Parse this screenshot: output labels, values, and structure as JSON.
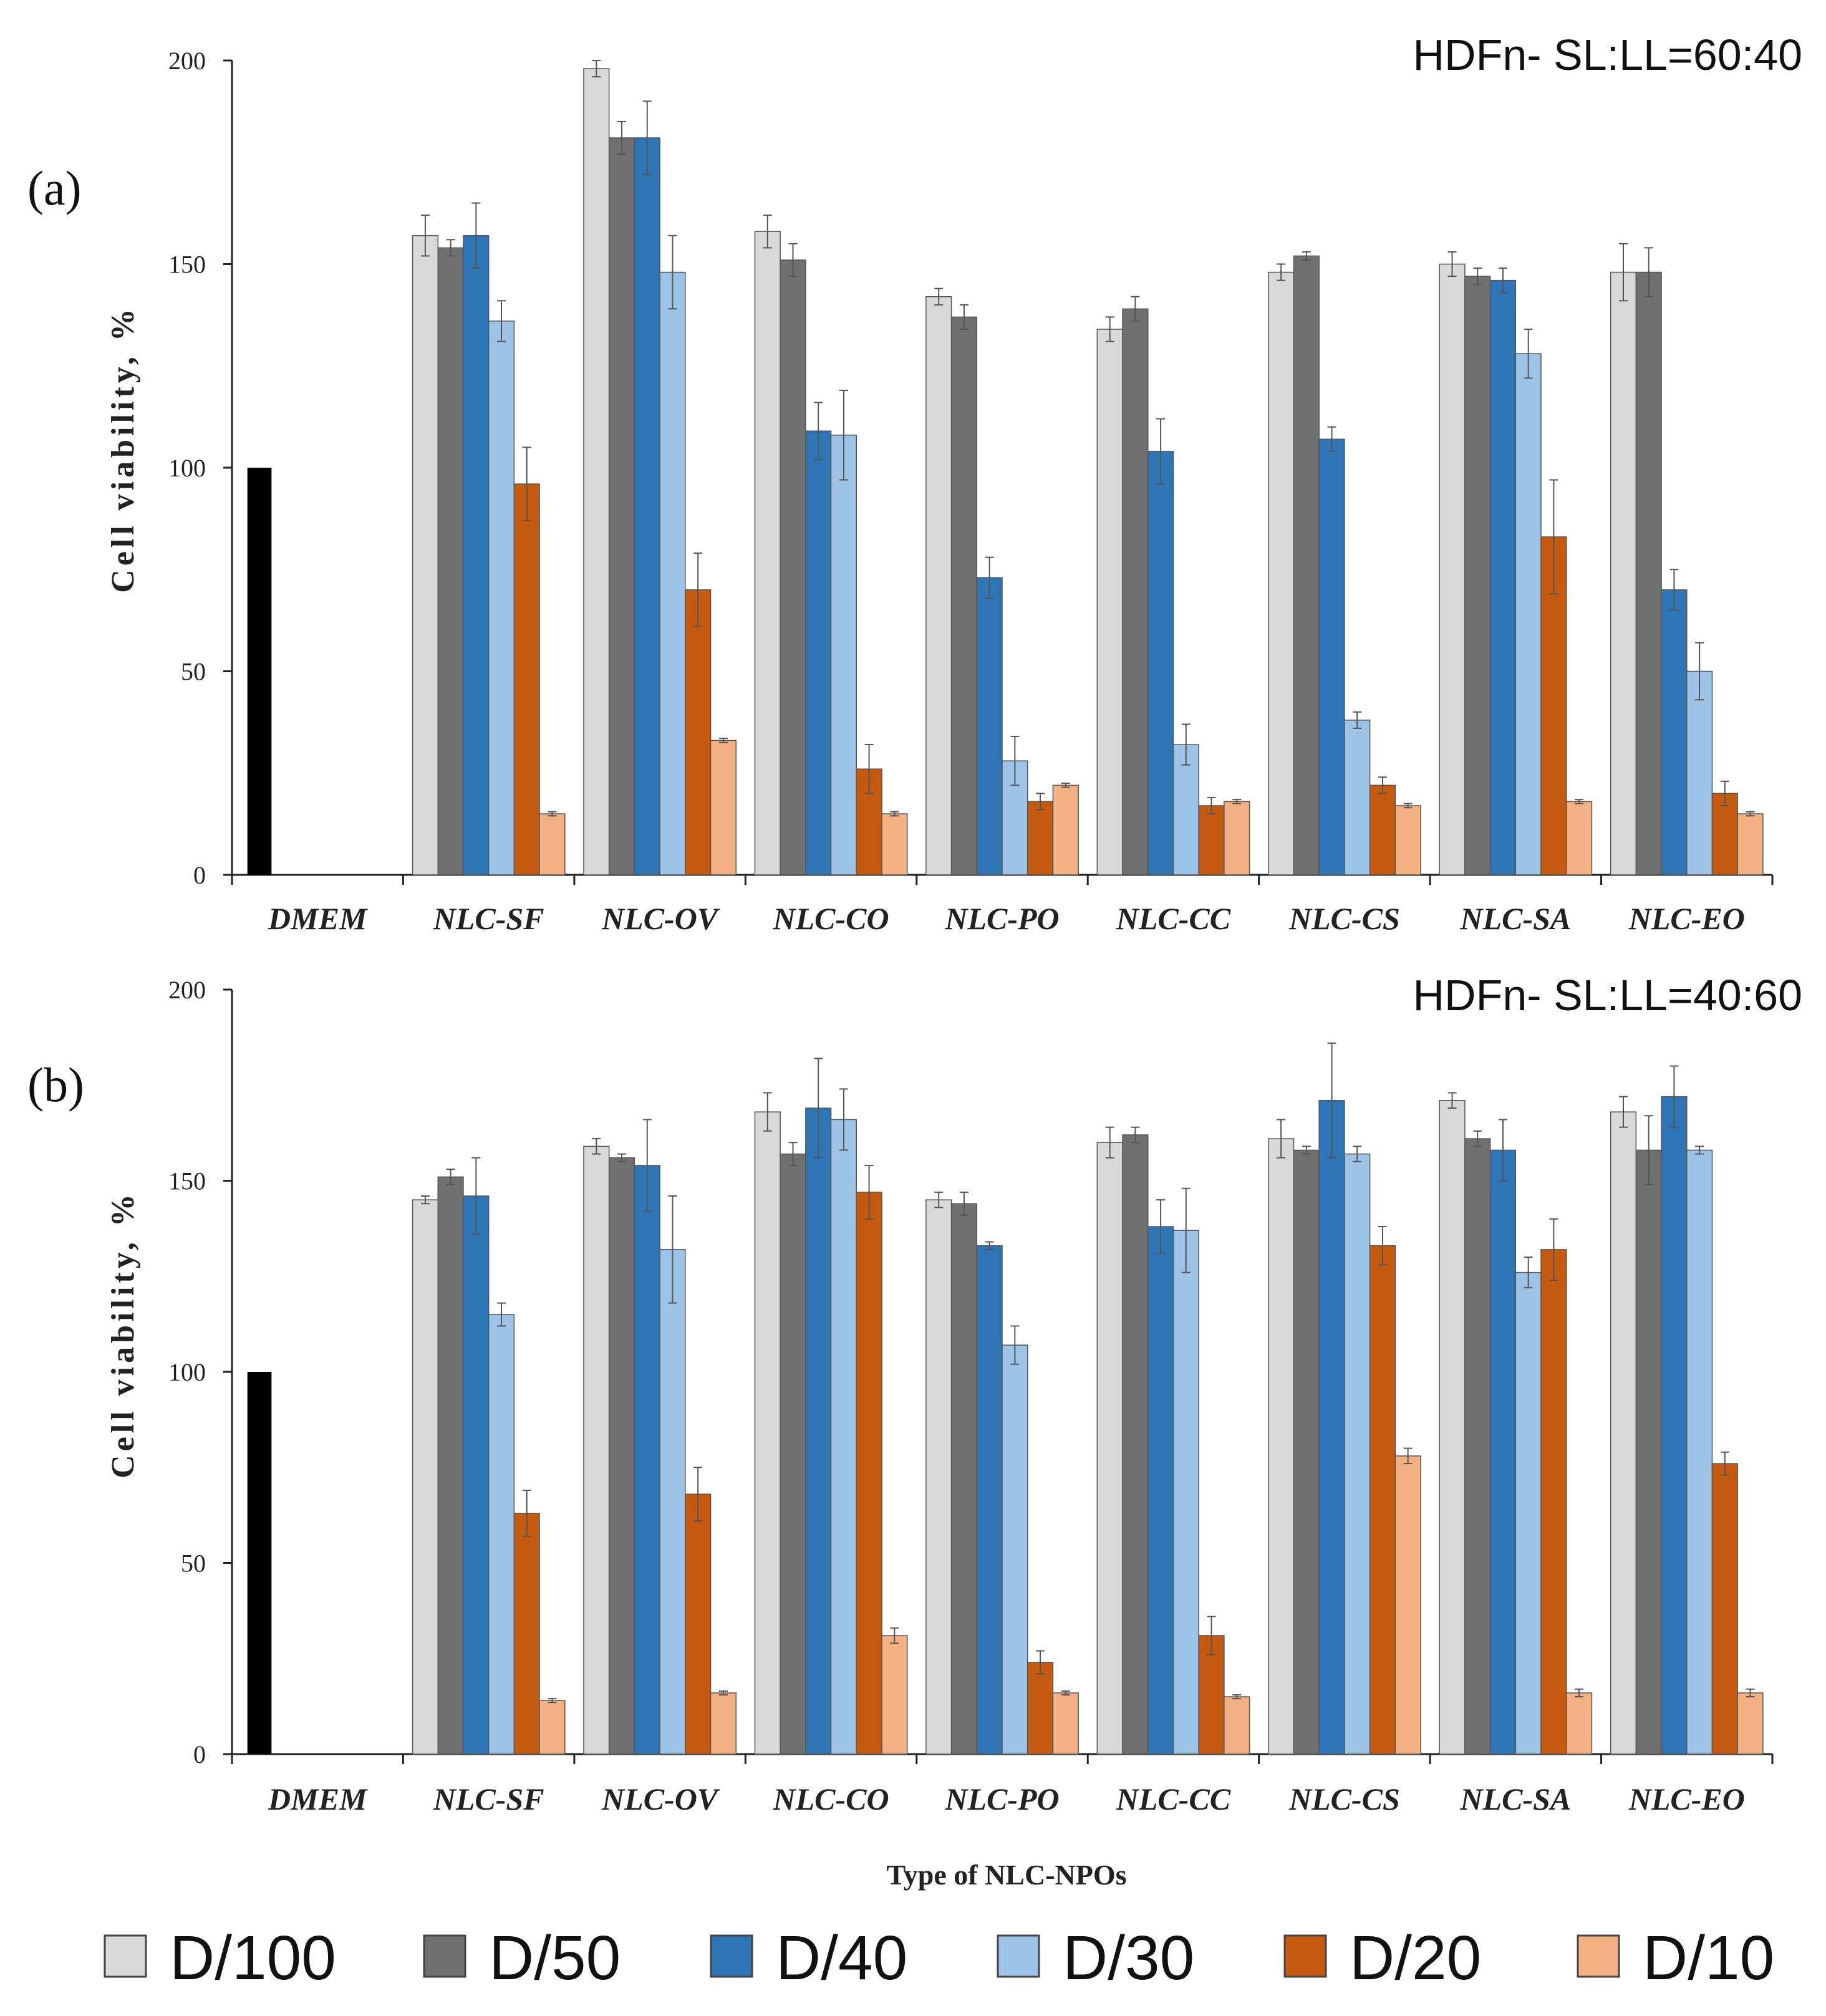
{
  "chart_data": [
    {
      "type": "bar",
      "panel_label": "(a)",
      "title": "HDFn- SL:LL=60:40",
      "ylabel": "Cell viability, %",
      "xlabel": "",
      "ylim": [
        0,
        200
      ],
      "yticks": [
        0,
        50,
        100,
        150,
        200
      ],
      "grid": false,
      "categories": [
        "DMEM",
        "NLC-SF",
        "NLC-OV",
        "NLC-CO",
        "NLC-PO",
        "NLC-CC",
        "NLC-CS",
        "NLC-SA",
        "NLC-EO"
      ],
      "control": {
        "category": "DMEM",
        "value": 100,
        "color": "#000000"
      },
      "series": [
        {
          "name": "D/100",
          "color": "#d9d9d9",
          "values": [
            null,
            157,
            198,
            158,
            142,
            134,
            148,
            150,
            148
          ],
          "errors": [
            null,
            5,
            2,
            4,
            2,
            3,
            2,
            3,
            7
          ]
        },
        {
          "name": "D/50",
          "color": "#707070",
          "values": [
            null,
            154,
            181,
            151,
            137,
            139,
            152,
            147,
            148
          ],
          "errors": [
            null,
            2,
            4,
            4,
            3,
            3,
            1,
            2,
            6
          ]
        },
        {
          "name": "D/40",
          "color": "#2e75b6",
          "values": [
            null,
            157,
            181,
            109,
            73,
            104,
            107,
            146,
            70
          ],
          "errors": [
            null,
            8,
            9,
            7,
            5,
            8,
            3,
            3,
            5
          ]
        },
        {
          "name": "D/30",
          "color": "#9dc3e6",
          "values": [
            null,
            136,
            148,
            108,
            28,
            32,
            38,
            128,
            50
          ],
          "errors": [
            null,
            5,
            9,
            11,
            6,
            5,
            2,
            6,
            7
          ]
        },
        {
          "name": "D/20",
          "color": "#c55a11",
          "values": [
            null,
            96,
            70,
            26,
            18,
            17,
            22,
            83,
            20
          ],
          "errors": [
            null,
            9,
            9,
            6,
            2,
            2,
            2,
            14,
            3
          ]
        },
        {
          "name": "D/10",
          "color": "#f4b183",
          "values": [
            null,
            15,
            33,
            15,
            22,
            18,
            17,
            18,
            15
          ],
          "errors": [
            null,
            0.5,
            0.5,
            0.5,
            0.5,
            0.5,
            0.5,
            0.5,
            0.5
          ]
        }
      ]
    },
    {
      "type": "bar",
      "panel_label": "(b)",
      "title": "HDFn- SL:LL=40:60",
      "ylabel": "Cell viability, %",
      "xlabel": "Type of NLC-NPOs",
      "ylim": [
        0,
        200
      ],
      "yticks": [
        0,
        50,
        100,
        150,
        200
      ],
      "grid": false,
      "categories": [
        "DMEM",
        "NLC-SF",
        "NLC-OV",
        "NLC-CO",
        "NLC-PO",
        "NLC-CC",
        "NLC-CS",
        "NLC-SA",
        "NLC-EO"
      ],
      "control": {
        "category": "DMEM",
        "value": 100,
        "color": "#000000"
      },
      "series": [
        {
          "name": "D/100",
          "color": "#d9d9d9",
          "values": [
            null,
            145,
            159,
            168,
            145,
            160,
            161,
            171,
            168
          ],
          "errors": [
            null,
            1,
            2,
            5,
            2,
            4,
            5,
            2,
            4
          ]
        },
        {
          "name": "D/50",
          "color": "#707070",
          "values": [
            null,
            151,
            156,
            157,
            144,
            162,
            158,
            161,
            158
          ],
          "errors": [
            null,
            2,
            1,
            3,
            3,
            2,
            1,
            2,
            9
          ]
        },
        {
          "name": "D/40",
          "color": "#2e75b6",
          "values": [
            null,
            146,
            154,
            169,
            133,
            138,
            171,
            158,
            172
          ],
          "errors": [
            null,
            10,
            12,
            13,
            1,
            7,
            15,
            8,
            8
          ]
        },
        {
          "name": "D/30",
          "color": "#9dc3e6",
          "values": [
            null,
            115,
            132,
            166,
            107,
            137,
            157,
            126,
            158
          ],
          "errors": [
            null,
            3,
            14,
            8,
            5,
            11,
            2,
            4,
            1
          ]
        },
        {
          "name": "D/20",
          "color": "#c55a11",
          "values": [
            null,
            63,
            68,
            147,
            24,
            31,
            133,
            132,
            76
          ],
          "errors": [
            null,
            6,
            7,
            7,
            3,
            5,
            5,
            8,
            3
          ]
        },
        {
          "name": "D/10",
          "color": "#f4b183",
          "values": [
            null,
            14,
            16,
            31,
            16,
            15,
            78,
            16,
            16
          ],
          "errors": [
            null,
            0.5,
            0.5,
            2,
            0.5,
            0.5,
            2,
            1,
            1
          ]
        }
      ]
    }
  ],
  "legend": {
    "position": "bottom",
    "items": [
      {
        "name": "D/100",
        "color": "#d9d9d9"
      },
      {
        "name": "D/50",
        "color": "#707070"
      },
      {
        "name": "D/40",
        "color": "#2e75b6"
      },
      {
        "name": "D/30",
        "color": "#9dc3e6"
      },
      {
        "name": "D/20",
        "color": "#c55a11"
      },
      {
        "name": "D/10",
        "color": "#f4b183"
      }
    ]
  }
}
